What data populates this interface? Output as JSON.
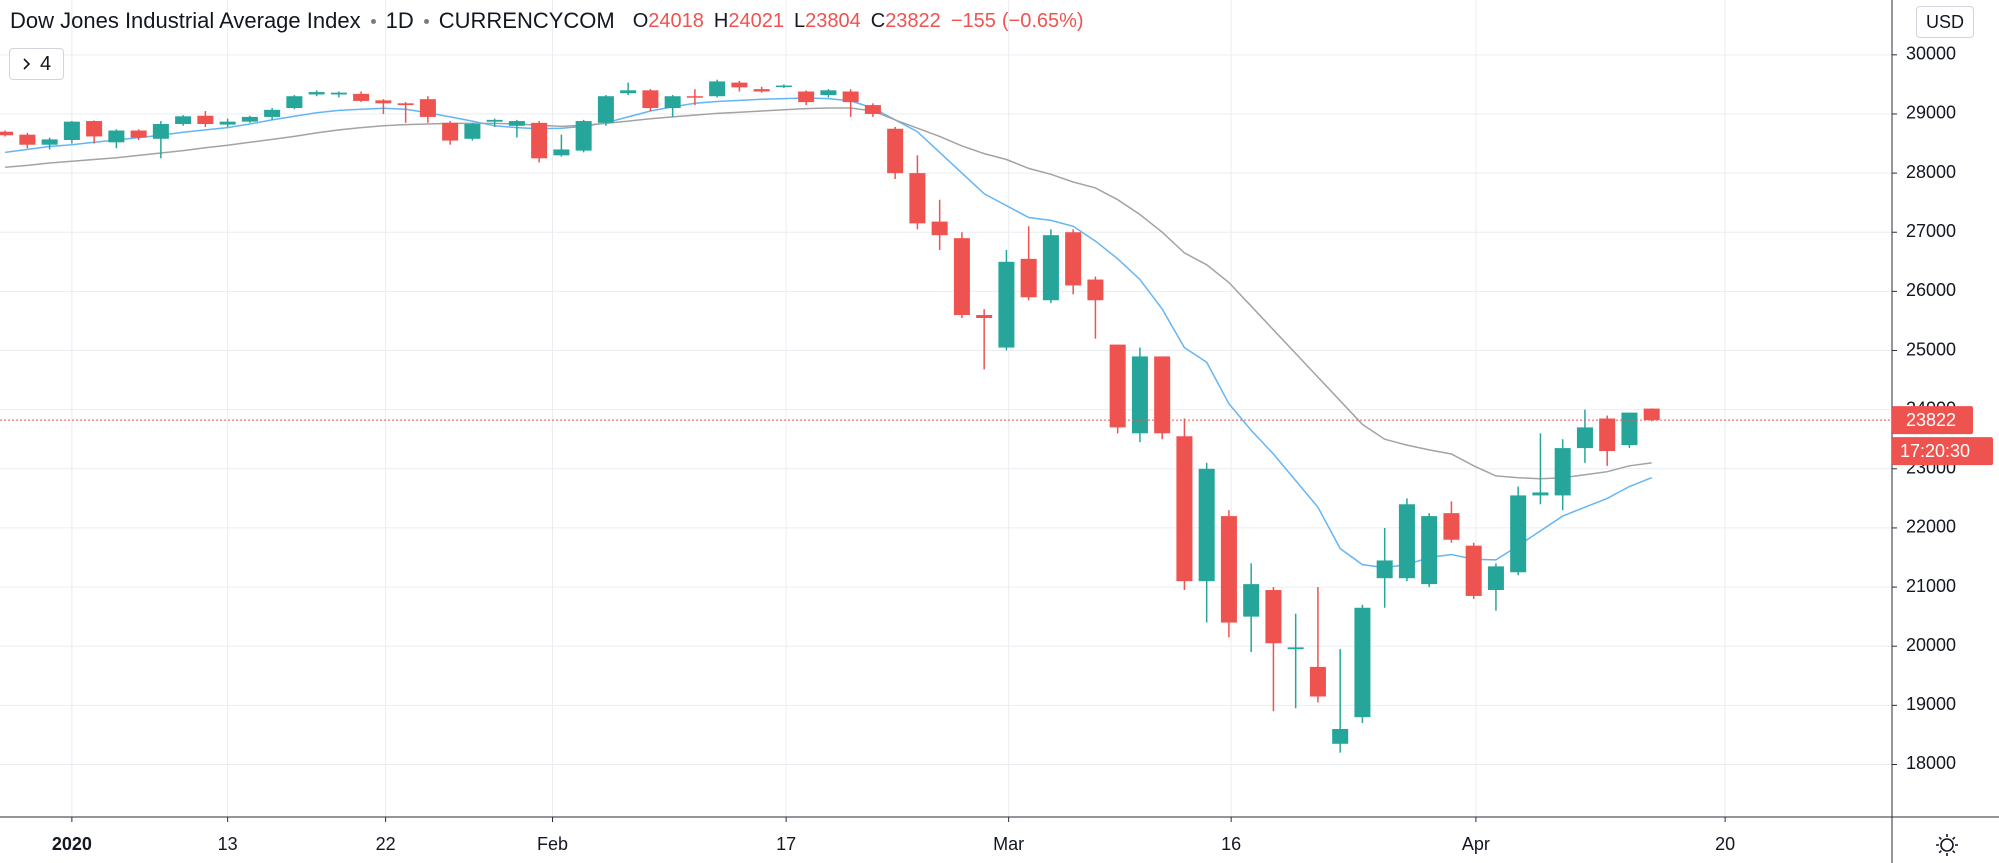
{
  "chart_data": {
    "type": "candlestick",
    "title": "Dow Jones Industrial Average Index",
    "interval": "1D",
    "exchange": "CURRENCYCOM",
    "currency": "USD",
    "ohlc_labels": [
      "O",
      "H",
      "L",
      "C"
    ],
    "change": {
      "value": -155,
      "label": "−155"
    },
    "change_pct": {
      "value": -0.65,
      "label": "(−0.65%)"
    },
    "countdown": "17:20:30",
    "collapsed_indicators": 4,
    "up_color": "#26a69a",
    "down_color": "#ef5350",
    "open": [
      28700,
      28650,
      28480,
      28560,
      28880,
      28520,
      28720,
      28580,
      28830,
      28970,
      28820,
      28870,
      28950,
      29100,
      29330,
      29330,
      29340,
      29230,
      29180,
      29250,
      28850,
      28580,
      28870,
      28800,
      28850,
      28300,
      28380,
      28850,
      29350,
      29400,
      29100,
      29300,
      29300,
      29530,
      29420,
      29460,
      29380,
      29320,
      29380,
      29150,
      28750,
      28000,
      27180,
      26900,
      25600,
      25050,
      26550,
      25850,
      27000,
      26200,
      25100,
      23600,
      24900,
      23550,
      21100,
      22200,
      20500,
      20950,
      19950,
      19650,
      18350,
      18800,
      21150,
      21150,
      21050,
      22250,
      21700,
      20950,
      21250,
      22550,
      22550,
      23350,
      23850,
      23400,
      24018
    ],
    "high": [
      28720,
      28680,
      28600,
      28880,
      28890,
      28740,
      28740,
      28880,
      28980,
      29050,
      28920,
      28970,
      29100,
      29320,
      29400,
      29380,
      29380,
      29250,
      29200,
      29300,
      28880,
      28850,
      28920,
      28900,
      28880,
      28650,
      28900,
      29320,
      29530,
      29420,
      29320,
      29420,
      29580,
      29560,
      29460,
      29500,
      29400,
      29420,
      29420,
      29180,
      28780,
      28300,
      27550,
      27000,
      25700,
      26700,
      27100,
      27050,
      27050,
      26250,
      25100,
      25050,
      24900,
      23850,
      23100,
      22300,
      21400,
      21000,
      20550,
      21000,
      19950,
      20700,
      22000,
      22500,
      22250,
      22450,
      21750,
      21400,
      22700,
      23600,
      23500,
      24000,
      23900,
      23950,
      24021
    ],
    "low": [
      28620,
      28420,
      28400,
      28500,
      28500,
      28420,
      28560,
      28250,
      28800,
      28780,
      28780,
      28850,
      28900,
      29080,
      29300,
      29280,
      29200,
      29000,
      28850,
      28850,
      28480,
      28550,
      28780,
      28600,
      28180,
      28280,
      28350,
      28800,
      29320,
      29050,
      28950,
      29150,
      29280,
      29380,
      29360,
      29440,
      29150,
      29280,
      28950,
      28950,
      27900,
      27050,
      26700,
      25550,
      24680,
      25000,
      25850,
      25800,
      25950,
      25200,
      23600,
      23450,
      23500,
      20950,
      20400,
      20150,
      19900,
      18900,
      18950,
      19050,
      18200,
      18700,
      20650,
      21100,
      21000,
      21750,
      20800,
      20600,
      21200,
      22400,
      22300,
      23100,
      23050,
      23350,
      23804
    ],
    "close": [
      28640,
      28480,
      28570,
      28870,
      28620,
      28720,
      28600,
      28830,
      28960,
      28830,
      28870,
      28950,
      29070,
      29300,
      29370,
      29360,
      29220,
      29180,
      29150,
      28950,
      28550,
      28830,
      28900,
      28880,
      28250,
      28400,
      28880,
      29300,
      29400,
      29100,
      29300,
      29280,
      29550,
      29450,
      29380,
      29480,
      29200,
      29400,
      29200,
      29000,
      28000,
      27150,
      26950,
      25600,
      25550,
      26500,
      25900,
      26950,
      26100,
      25850,
      23700,
      24900,
      23600,
      21100,
      23000,
      20400,
      21050,
      20050,
      19980,
      19150,
      18600,
      20650,
      21450,
      22400,
      22200,
      21800,
      20850,
      21350,
      22550,
      22600,
      23350,
      23700,
      23300,
      23950,
      23822
    ],
    "moving_averages": [
      {
        "color": "#64b5f6",
        "values": [
          28350,
          28400,
          28450,
          28480,
          28520,
          28560,
          28600,
          28640,
          28690,
          28730,
          28770,
          28830,
          28900,
          28960,
          29020,
          29060,
          29080,
          29095,
          29080,
          29020,
          28950,
          28880,
          28800,
          28770,
          28750,
          28760,
          28790,
          28850,
          28950,
          29050,
          29120,
          29180,
          29210,
          29230,
          29250,
          29260,
          29270,
          29260,
          29220,
          29100,
          28900,
          28700,
          28350,
          28000,
          27650,
          27450,
          27250,
          27200,
          27100,
          26850,
          26550,
          26200,
          25700,
          25050,
          24800,
          24100,
          23650,
          23250,
          22800,
          22350,
          21650,
          21380,
          21330,
          21380,
          21500,
          21550,
          21470,
          21460,
          21700,
          21950,
          22200,
          22350,
          22500,
          22700,
          22850
        ]
      },
      {
        "color": "#a3a3a3",
        "values": [
          28100,
          28130,
          28170,
          28200,
          28230,
          28260,
          28300,
          28340,
          28380,
          28430,
          28470,
          28520,
          28570,
          28620,
          28680,
          28730,
          28770,
          28800,
          28820,
          28830,
          28840,
          28840,
          28840,
          28830,
          28810,
          28790,
          28810,
          28840,
          28880,
          28920,
          28950,
          28980,
          29010,
          29030,
          29050,
          29070,
          29090,
          29100,
          29100,
          29050,
          28900,
          28760,
          28620,
          28460,
          28330,
          28230,
          28080,
          27980,
          27850,
          27750,
          27550,
          27300,
          27000,
          26650,
          26450,
          26150,
          25750,
          25350,
          24950,
          24550,
          24150,
          23750,
          23500,
          23400,
          23320,
          23250,
          23050,
          22880,
          22850,
          22830,
          22850,
          22900,
          22950,
          23050,
          23100
        ]
      }
    ],
    "xlim": [
      -0.23,
      84.8
    ],
    "xticks": [
      {
        "value": 3.0,
        "label": "2020"
      },
      {
        "value": 10.0,
        "label": "13"
      },
      {
        "value": 17.1,
        "label": "22"
      },
      {
        "value": 24.6,
        "label": "Feb"
      },
      {
        "value": 35.1,
        "label": "17"
      },
      {
        "value": 45.1,
        "label": "Mar"
      },
      {
        "value": 55.1,
        "label": "16"
      },
      {
        "value": 66.1,
        "label": "Apr"
      },
      {
        "value": 77.3,
        "label": "20"
      }
    ],
    "ylim": [
      17112,
      30927
    ],
    "yticks": [
      18000,
      19000,
      20000,
      21000,
      22000,
      23000,
      24000,
      25000,
      26000,
      27000,
      28000,
      29000,
      30000
    ],
    "grid": true
  }
}
